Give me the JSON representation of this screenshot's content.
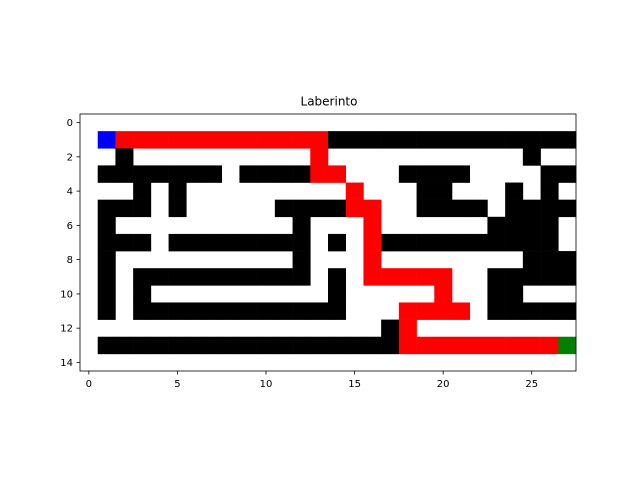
{
  "chart_data": {
    "type": "heatmap",
    "title": "Laberinto",
    "xlabel": "",
    "ylabel": "",
    "xlim": [
      -0.5,
      27.5
    ],
    "ylim": [
      14.5,
      -0.5
    ],
    "x_ticks": [
      0,
      5,
      10,
      15,
      20,
      25
    ],
    "y_ticks": [
      0,
      2,
      4,
      6,
      8,
      10,
      12,
      14
    ],
    "grid": false,
    "legend": "none",
    "colormap": {
      "0": "#ffffff",
      "1": "#000000",
      "2": "#ff0000",
      "3": "#0000ff",
      "4": "#008000"
    },
    "cell_legend": {
      "0": "open",
      "1": "wall",
      "2": "path",
      "3": "start",
      "4": "goal"
    },
    "grid_values": [
      "0000000000000000000000000000",
      "0322222222222211111111111111",
      "0010000000000200000000000100",
      "0111111101111220001111000011",
      "0001010000000002000110001010",
      "0111010000011112200111101111",
      "0100000000001000200000011110",
      "0111011111111010211111111110",
      "0100000000001000200000000111",
      "0101111111111010222220011111",
      "0101000000000010000020011000",
      "0101111111111110002222011111",
      "0000000000000000012000000000",
      "0111111111111111112222222224",
      "0000000000000000000000000000"
    ]
  }
}
